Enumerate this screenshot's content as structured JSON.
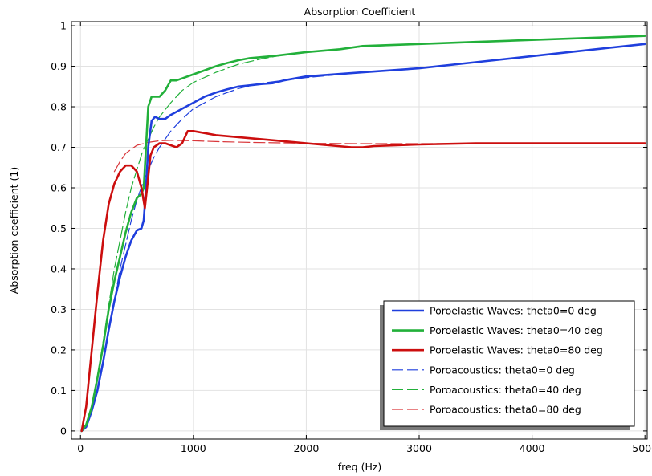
{
  "chart_data": {
    "type": "line",
    "title": "Absorption Coefficient",
    "xlabel": "freq (Hz)",
    "ylabel": "Absorption coefficient (1)",
    "xlim": [
      -80,
      5020
    ],
    "ylim": [
      -0.02,
      1.01
    ],
    "xticks": [
      0,
      1000,
      2000,
      3000,
      4000,
      5000
    ],
    "yticks": [
      0,
      0.1,
      0.2,
      0.3,
      0.4,
      0.5,
      0.6,
      0.7,
      0.8,
      0.9,
      1
    ],
    "grid": true,
    "legend_position": "bottom-right",
    "series": [
      {
        "name": "Poroelastic Waves: theta0=0 deg",
        "color": "#1f3fdd",
        "style": "solid",
        "points": [
          [
            10,
            0
          ],
          [
            50,
            0.01
          ],
          [
            100,
            0.05
          ],
          [
            150,
            0.1
          ],
          [
            200,
            0.17
          ],
          [
            250,
            0.25
          ],
          [
            300,
            0.32
          ],
          [
            350,
            0.38
          ],
          [
            400,
            0.43
          ],
          [
            450,
            0.47
          ],
          [
            500,
            0.495
          ],
          [
            540,
            0.5
          ],
          [
            560,
            0.52
          ],
          [
            580,
            0.6
          ],
          [
            600,
            0.7
          ],
          [
            630,
            0.765
          ],
          [
            660,
            0.775
          ],
          [
            700,
            0.77
          ],
          [
            750,
            0.77
          ],
          [
            800,
            0.78
          ],
          [
            900,
            0.795
          ],
          [
            1000,
            0.81
          ],
          [
            1100,
            0.825
          ],
          [
            1200,
            0.835
          ],
          [
            1300,
            0.843
          ],
          [
            1400,
            0.85
          ],
          [
            1500,
            0.853
          ],
          [
            1600,
            0.856
          ],
          [
            1700,
            0.858
          ],
          [
            1800,
            0.865
          ],
          [
            2000,
            0.875
          ],
          [
            2500,
            0.885
          ],
          [
            3000,
            0.895
          ],
          [
            3500,
            0.91
          ],
          [
            4000,
            0.925
          ],
          [
            4500,
            0.94
          ],
          [
            5000,
            0.955
          ]
        ]
      },
      {
        "name": "Poroelastic Waves: theta0=40 deg",
        "color": "#22b03a",
        "style": "solid",
        "points": [
          [
            10,
            0
          ],
          [
            50,
            0.015
          ],
          [
            100,
            0.06
          ],
          [
            150,
            0.13
          ],
          [
            200,
            0.21
          ],
          [
            250,
            0.3
          ],
          [
            300,
            0.37
          ],
          [
            350,
            0.43
          ],
          [
            400,
            0.49
          ],
          [
            450,
            0.54
          ],
          [
            500,
            0.575
          ],
          [
            540,
            0.585
          ],
          [
            560,
            0.6
          ],
          [
            580,
            0.7
          ],
          [
            600,
            0.8
          ],
          [
            630,
            0.825
          ],
          [
            700,
            0.825
          ],
          [
            750,
            0.84
          ],
          [
            800,
            0.865
          ],
          [
            850,
            0.865
          ],
          [
            900,
            0.87
          ],
          [
            1000,
            0.88
          ],
          [
            1100,
            0.89
          ],
          [
            1200,
            0.9
          ],
          [
            1300,
            0.908
          ],
          [
            1400,
            0.915
          ],
          [
            1500,
            0.92
          ],
          [
            1700,
            0.925
          ],
          [
            2000,
            0.935
          ],
          [
            2300,
            0.942
          ],
          [
            2500,
            0.95
          ],
          [
            3000,
            0.955
          ],
          [
            3500,
            0.96
          ],
          [
            4000,
            0.965
          ],
          [
            4500,
            0.97
          ],
          [
            5000,
            0.975
          ]
        ]
      },
      {
        "name": "Poroelastic Waves: theta0=80 deg",
        "color": "#cc0e0e",
        "style": "solid",
        "points": [
          [
            10,
            0
          ],
          [
            50,
            0.06
          ],
          [
            100,
            0.2
          ],
          [
            150,
            0.34
          ],
          [
            200,
            0.47
          ],
          [
            250,
            0.56
          ],
          [
            300,
            0.61
          ],
          [
            350,
            0.64
          ],
          [
            400,
            0.655
          ],
          [
            450,
            0.655
          ],
          [
            500,
            0.64
          ],
          [
            540,
            0.6
          ],
          [
            570,
            0.55
          ],
          [
            590,
            0.6
          ],
          [
            620,
            0.68
          ],
          [
            650,
            0.7
          ],
          [
            700,
            0.71
          ],
          [
            750,
            0.71
          ],
          [
            800,
            0.705
          ],
          [
            850,
            0.7
          ],
          [
            900,
            0.71
          ],
          [
            950,
            0.74
          ],
          [
            1000,
            0.74
          ],
          [
            1100,
            0.735
          ],
          [
            1200,
            0.73
          ],
          [
            1400,
            0.725
          ],
          [
            1600,
            0.72
          ],
          [
            1800,
            0.715
          ],
          [
            2000,
            0.71
          ],
          [
            2200,
            0.705
          ],
          [
            2400,
            0.7
          ],
          [
            2500,
            0.7
          ],
          [
            2600,
            0.703
          ],
          [
            3000,
            0.707
          ],
          [
            3500,
            0.71
          ],
          [
            4000,
            0.71
          ],
          [
            4500,
            0.71
          ],
          [
            5000,
            0.71
          ]
        ]
      },
      {
        "name": "Poroacoustics: theta0=0 deg",
        "color": "#1f3fdd",
        "style": "dashed",
        "points": [
          [
            10,
            0
          ],
          [
            50,
            0.01
          ],
          [
            100,
            0.05
          ],
          [
            150,
            0.1
          ],
          [
            200,
            0.17
          ],
          [
            250,
            0.25
          ],
          [
            300,
            0.32
          ],
          [
            350,
            0.4
          ],
          [
            400,
            0.46
          ],
          [
            450,
            0.52
          ],
          [
            500,
            0.57
          ],
          [
            550,
            0.61
          ],
          [
            600,
            0.645
          ],
          [
            650,
            0.675
          ],
          [
            700,
            0.7
          ],
          [
            800,
            0.74
          ],
          [
            900,
            0.77
          ],
          [
            1000,
            0.795
          ],
          [
            1200,
            0.825
          ],
          [
            1400,
            0.845
          ],
          [
            1600,
            0.858
          ],
          [
            1800,
            0.865
          ],
          [
            2000,
            0.872
          ],
          [
            2500,
            0.885
          ],
          [
            3000,
            0.895
          ],
          [
            3500,
            0.91
          ],
          [
            4000,
            0.925
          ],
          [
            4500,
            0.94
          ],
          [
            5000,
            0.955
          ]
        ]
      },
      {
        "name": "Poroacoustics: theta0=40 deg",
        "color": "#22b03a",
        "style": "dashed",
        "points": [
          [
            10,
            0
          ],
          [
            50,
            0.015
          ],
          [
            100,
            0.06
          ],
          [
            150,
            0.13
          ],
          [
            200,
            0.22
          ],
          [
            250,
            0.31
          ],
          [
            300,
            0.4
          ],
          [
            350,
            0.47
          ],
          [
            400,
            0.54
          ],
          [
            450,
            0.6
          ],
          [
            500,
            0.645
          ],
          [
            550,
            0.69
          ],
          [
            600,
            0.72
          ],
          [
            650,
            0.75
          ],
          [
            700,
            0.775
          ],
          [
            800,
            0.81
          ],
          [
            900,
            0.84
          ],
          [
            1000,
            0.86
          ],
          [
            1200,
            0.885
          ],
          [
            1400,
            0.905
          ],
          [
            1600,
            0.918
          ],
          [
            1800,
            0.928
          ],
          [
            2000,
            0.935
          ],
          [
            2500,
            0.948
          ],
          [
            3000,
            0.955
          ],
          [
            3500,
            0.96
          ],
          [
            4000,
            0.965
          ],
          [
            4500,
            0.97
          ],
          [
            5000,
            0.975
          ]
        ]
      },
      {
        "name": "Poroacoustics: theta0=80 deg",
        "color": "#d9373b",
        "style": "dashed",
        "points": [
          [
            300,
            0.64
          ],
          [
            350,
            0.665
          ],
          [
            400,
            0.685
          ],
          [
            450,
            0.695
          ],
          [
            500,
            0.705
          ],
          [
            600,
            0.712
          ],
          [
            700,
            0.716
          ],
          [
            800,
            0.717
          ],
          [
            1000,
            0.716
          ],
          [
            1200,
            0.714
          ],
          [
            1500,
            0.712
          ],
          [
            2000,
            0.71
          ],
          [
            2500,
            0.709
          ],
          [
            3000,
            0.709
          ],
          [
            3500,
            0.709
          ],
          [
            4000,
            0.71
          ],
          [
            4500,
            0.71
          ],
          [
            5000,
            0.71
          ]
        ]
      }
    ]
  }
}
